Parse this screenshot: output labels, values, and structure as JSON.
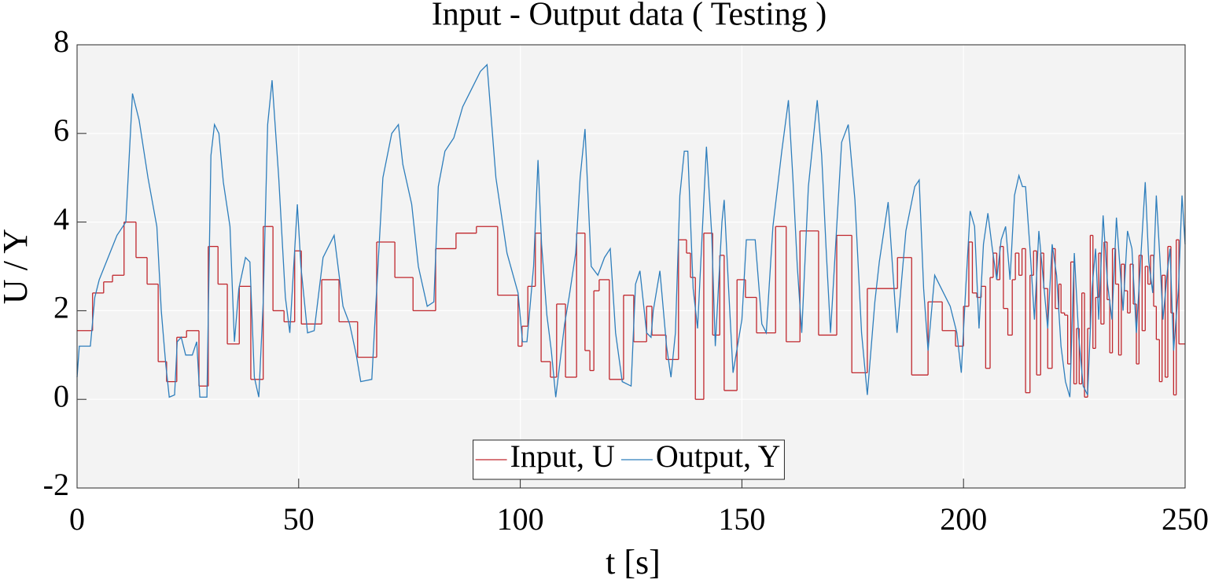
{
  "chart_data": {
    "type": "line",
    "title": "Input - Output data ( Testing )",
    "x_label": "t [s]",
    "y_label": "U / Y",
    "xlim": [
      0,
      250
    ],
    "ylim": [
      -2,
      8
    ],
    "xticks": [
      0,
      50,
      100,
      150,
      200,
      250
    ],
    "yticks": [
      -2,
      0,
      2,
      4,
      6,
      8
    ],
    "grid": true,
    "legend": "bottom",
    "series": [
      {
        "name": "Input, U",
        "color": "#c0272d",
        "step": true,
        "x": [
          0,
          3.5,
          6,
          8,
          10.6,
          13.3,
          15.8,
          18.3,
          20.2,
          22.5,
          24.7,
          27.5,
          29.6,
          31.8,
          33.9,
          36.6,
          39.2,
          42,
          44.2,
          46.7,
          49.1,
          50.6,
          55.2,
          59.1,
          63.3,
          67.6,
          71.7,
          75.8,
          80.9,
          85.5,
          90.1,
          94.9,
          99.5,
          100.4,
          101.7,
          103.4,
          104.7,
          106.8,
          108.2,
          110.2,
          112.7,
          114.6,
          115.7,
          116.6,
          117.8,
          120.1,
          123.3,
          125.6,
          128.5,
          129.7,
          132.9,
          135.7,
          137.5,
          138.4,
          139.5,
          141.4,
          143.4,
          145,
          146,
          148.9,
          150.8,
          153.3,
          157.6,
          160,
          163.1,
          167.3,
          171.4,
          174.8,
          178.3,
          185.1,
          188.3,
          192,
          195.2,
          198.2,
          200,
          201.2,
          202,
          203,
          204,
          205,
          206,
          206.7,
          207.5,
          208.2,
          209,
          210,
          211,
          211.7,
          212.5,
          213.2,
          214,
          215,
          215.8,
          216.5,
          217.4,
          218.1,
          219,
          220,
          220.7,
          221.5,
          222,
          222.8,
          223.5,
          224.2,
          224.9,
          225.5,
          226.1,
          226.7,
          227.3,
          228,
          228.6,
          229.2,
          229.8,
          230.5,
          231,
          231.7,
          232.4,
          233,
          233.6,
          234.3,
          235,
          235.6,
          236.3,
          237,
          237.6,
          238.3,
          239,
          239.6,
          240.3,
          241,
          241.6,
          242.2,
          242.9,
          243.5,
          244.2,
          244.8,
          245.5,
          246.1,
          246.8,
          247.4,
          248,
          248.6
        ],
        "values": [
          1.55,
          2.4,
          2.65,
          2.8,
          4.0,
          3.2,
          2.6,
          0.85,
          0.4,
          1.4,
          1.55,
          0.3,
          3.45,
          2.6,
          1.25,
          2.55,
          0.45,
          3.9,
          2.0,
          1.75,
          3.35,
          1.7,
          2.7,
          1.75,
          0.95,
          3.55,
          2.75,
          2.0,
          3.4,
          3.75,
          3.9,
          2.35,
          1.2,
          1.65,
          2.55,
          3.75,
          0.85,
          0.5,
          2.15,
          0.5,
          3.75,
          1.1,
          0.65,
          2.45,
          2.7,
          0.45,
          2.35,
          1.3,
          2.1,
          1.45,
          0.9,
          3.6,
          3.3,
          2.75,
          0.0,
          3.75,
          1.45,
          3.25,
          0.2,
          2.7,
          2.3,
          1.5,
          3.9,
          1.3,
          3.8,
          1.45,
          3.7,
          0.6,
          2.5,
          3.2,
          0.55,
          2.2,
          1.55,
          1.2,
          2.1,
          3.55,
          2.4,
          2.3,
          2.55,
          0.7,
          2.75,
          3.3,
          2.7,
          3.45,
          2.05,
          1.45,
          2.7,
          3.3,
          2.8,
          3.4,
          0.15,
          2.8,
          3.35,
          0.55,
          3.3,
          2.5,
          0.7,
          3.4,
          2.05,
          2.6,
          1.95,
          1.9,
          0.8,
          3.1,
          0.35,
          1.6,
          0.35,
          2.4,
          0.05,
          1.6,
          3.7,
          1.15,
          2.3,
          3.3,
          1.7,
          3.55,
          2.25,
          1.05,
          3.4,
          2.6,
          1.0,
          3.05,
          2.45,
          1.95,
          3.05,
          2.15,
          0.8,
          3.25,
          1.55,
          3.0,
          2.6,
          3.25,
          2.1,
          1.35,
          0.4,
          2.8,
          0.5,
          3.45,
          1.95,
          0.1,
          3.6,
          1.25
        ]
      },
      {
        "name": "Output, Y",
        "color": "#2e7ebc",
        "x": [
          0,
          0.5,
          3,
          4,
          5,
          7,
          9,
          11,
          12.5,
          14,
          16,
          18,
          19,
          20,
          20.8,
          22,
          22.6,
          23.5,
          24.5,
          26,
          27,
          27.7,
          29.3,
          30.2,
          31,
          32,
          33,
          34.5,
          35.5,
          36.5,
          38,
          39,
          40,
          41,
          42,
          43,
          44,
          45.5,
          47,
          48,
          49.7,
          50.5,
          52,
          53.5,
          55.5,
          58,
          60,
          61.5,
          63,
          64,
          66.5,
          67.5,
          69,
          71,
          72.5,
          73.5,
          75.5,
          77,
          79,
          80.5,
          81.5,
          83,
          85,
          87,
          89,
          91,
          92.5,
          94.5,
          97,
          99.5,
          100.5,
          101.5,
          103,
          104,
          104.8,
          106,
          107,
          108,
          110,
          111,
          112.5,
          113.5,
          114.6,
          116,
          117.5,
          119,
          120.3,
          121.5,
          123,
          125,
          126,
          127,
          128.5,
          129.5,
          130,
          131.5,
          133,
          134,
          135,
          136,
          137,
          137.8,
          139,
          140,
          142,
          143.2,
          144,
          145.5,
          146,
          147,
          148,
          150,
          151,
          153,
          154.5,
          155.5,
          157,
          159,
          160.5,
          161.5,
          162.5,
          163.5,
          165,
          167,
          168,
          169,
          170,
          172.5,
          174,
          175.5,
          177,
          178.3,
          180,
          181,
          183,
          185,
          187,
          189,
          190,
          191,
          192,
          193.5,
          195,
          197,
          198.5,
          199.5,
          200.5,
          201.5,
          202.5,
          203.5,
          204.5,
          205.5,
          206.5,
          207.5,
          208.5,
          209.5,
          210.5,
          211.5,
          212.5,
          213.3,
          214,
          215,
          216,
          217,
          218,
          219,
          220,
          221,
          222,
          223,
          224,
          225,
          226,
          227,
          228,
          229,
          229.8,
          230.5,
          231.5,
          232.5,
          233.5,
          234.5,
          235.5,
          236,
          237,
          238,
          239,
          240,
          241,
          241.8,
          242.7,
          243.5,
          244.3,
          245,
          246,
          246.6,
          247.4,
          248.5,
          249.3,
          250
        ],
        "values": [
          0.5,
          1.2,
          1.2,
          2.3,
          2.7,
          3.2,
          3.7,
          4.0,
          6.9,
          6.3,
          5.0,
          3.9,
          2.0,
          0.8,
          0.05,
          0.1,
          1.3,
          1.4,
          1.0,
          1.0,
          1.3,
          0.05,
          0.05,
          5.5,
          6.2,
          6.0,
          4.9,
          3.9,
          1.3,
          2.5,
          3.2,
          3.1,
          0.5,
          0.05,
          2.2,
          6.2,
          7.2,
          5.0,
          2.3,
          1.5,
          4.4,
          3.0,
          1.5,
          1.55,
          3.2,
          3.7,
          2.1,
          1.7,
          1.0,
          0.4,
          0.45,
          2.3,
          5.0,
          6.0,
          6.2,
          5.3,
          4.4,
          3.0,
          2.1,
          2.2,
          4.8,
          5.6,
          5.9,
          6.6,
          7.0,
          7.4,
          7.55,
          5.0,
          3.3,
          2.4,
          1.3,
          1.3,
          3.0,
          5.4,
          3.5,
          1.9,
          1.1,
          0.05,
          1.7,
          2.3,
          3.3,
          5.0,
          6.1,
          3.0,
          2.8,
          3.2,
          3.4,
          1.5,
          0.4,
          0.3,
          2.6,
          2.9,
          1.5,
          1.4,
          2.0,
          2.9,
          1.2,
          0.5,
          1.5,
          4.6,
          5.6,
          5.6,
          2.5,
          1.6,
          5.7,
          3.7,
          1.2,
          4.0,
          4.5,
          2.5,
          0.6,
          1.8,
          3.6,
          3.6,
          1.7,
          1.5,
          3.9,
          5.6,
          6.75,
          5.0,
          3.0,
          1.5,
          4.8,
          6.75,
          5.5,
          3.4,
          1.5,
          5.8,
          6.2,
          4.5,
          1.5,
          0.1,
          2.2,
          3.1,
          4.45,
          1.5,
          3.8,
          4.8,
          4.95,
          2.5,
          1.1,
          2.8,
          2.5,
          2.1,
          1.5,
          0.6,
          2.5,
          4.25,
          3.9,
          1.6,
          3.5,
          4.2,
          3.4,
          2.7,
          3.6,
          3.9,
          2.7,
          4.6,
          5.05,
          4.8,
          4.8,
          3.4,
          1.8,
          3.8,
          2.7,
          1.6,
          3.5,
          2.8,
          1.2,
          0.4,
          0.05,
          3.3,
          1.4,
          0.3,
          0.1,
          2.5,
          3.4,
          1.8,
          4.15,
          2.6,
          1.8,
          4.1,
          2.7,
          2.0,
          3.8,
          3.4,
          1.5,
          3.2,
          4.9,
          3.1,
          2.4,
          4.6,
          3.2,
          1.8,
          2.9,
          3.4,
          1.1,
          2.5,
          4.6,
          3.5
        ]
      }
    ]
  }
}
